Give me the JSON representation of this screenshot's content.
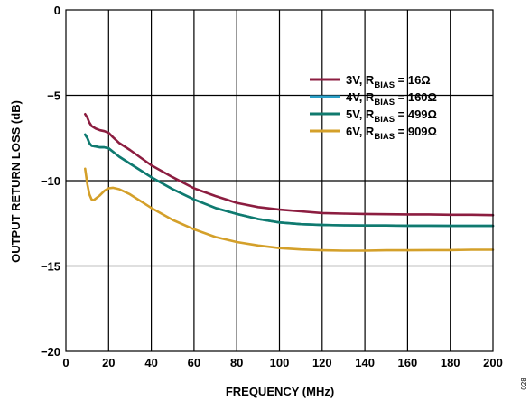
{
  "chart_data": {
    "type": "line",
    "title": "",
    "xlabel": "FREQUENCY (MHz)",
    "ylabel": "OUTPUT RETURN LOSS (dB)",
    "xlim": [
      0,
      200
    ],
    "ylim": [
      -20,
      0
    ],
    "xticks": [
      0,
      20,
      40,
      60,
      80,
      100,
      120,
      140,
      160,
      180,
      200
    ],
    "yticks": [
      0,
      -5,
      -10,
      -15,
      -20
    ],
    "x_tick_labels": [
      "0",
      "20",
      "40",
      "60",
      "80",
      "100",
      "120",
      "140",
      "160",
      "180",
      "200"
    ],
    "y_tick_labels": [
      "0",
      "−5",
      "−10",
      "−15",
      "−20"
    ],
    "grid": true,
    "legend_position": "top-right",
    "series": [
      {
        "name": "3V, RBIAS = 16Ω",
        "legend": {
          "prefix": "3V, R",
          "sub": "BIAS",
          "suffix": " = 16Ω"
        },
        "color": "#8c1d40",
        "x": [
          9,
          10,
          11,
          12,
          14,
          16,
          18,
          20,
          22,
          25,
          30,
          40,
          50,
          60,
          70,
          80,
          90,
          100,
          110,
          120,
          130,
          140,
          150,
          160,
          170,
          180,
          190,
          200
        ],
        "y": [
          -6.1,
          -6.3,
          -6.6,
          -6.8,
          -6.95,
          -7.05,
          -7.1,
          -7.2,
          -7.45,
          -7.8,
          -8.2,
          -9.1,
          -9.8,
          -10.45,
          -10.9,
          -11.3,
          -11.55,
          -11.7,
          -11.8,
          -11.9,
          -11.93,
          -11.95,
          -11.97,
          -11.98,
          -11.98,
          -12.0,
          -12.0,
          -12.02
        ]
      },
      {
        "name": "4V, RBIAS = 160Ω",
        "legend": {
          "prefix": "4V, R",
          "sub": "BIAS",
          "suffix": " = 160Ω"
        },
        "color": "#2aa0c8",
        "x": [
          9,
          10,
          11,
          12,
          14,
          16,
          18,
          20,
          22,
          25,
          30,
          40,
          50,
          60,
          70,
          80,
          90,
          100,
          110,
          120,
          130,
          140,
          150,
          160,
          170,
          180,
          190,
          200
        ],
        "y": [
          -7.3,
          -7.5,
          -7.8,
          -7.95,
          -8.0,
          -8.05,
          -8.05,
          -8.1,
          -8.3,
          -8.6,
          -9.0,
          -9.8,
          -10.5,
          -11.1,
          -11.6,
          -11.95,
          -12.25,
          -12.45,
          -12.55,
          -12.6,
          -12.62,
          -12.63,
          -12.63,
          -12.64,
          -12.64,
          -12.65,
          -12.65,
          -12.65
        ]
      },
      {
        "name": "5V, RBIAS = 499Ω",
        "legend": {
          "prefix": "5V, R",
          "sub": "BIAS",
          "suffix": " = 499Ω"
        },
        "color": "#107a6e",
        "x": [
          9,
          10,
          11,
          12,
          14,
          16,
          18,
          20,
          22,
          25,
          30,
          40,
          50,
          60,
          70,
          80,
          90,
          100,
          110,
          120,
          130,
          140,
          150,
          160,
          170,
          180,
          190,
          200
        ],
        "y": [
          -7.3,
          -7.5,
          -7.8,
          -7.95,
          -8.0,
          -8.05,
          -8.05,
          -8.1,
          -8.3,
          -8.6,
          -9.0,
          -9.8,
          -10.5,
          -11.1,
          -11.6,
          -11.95,
          -12.25,
          -12.45,
          -12.55,
          -12.6,
          -12.62,
          -12.63,
          -12.63,
          -12.64,
          -12.64,
          -12.65,
          -12.65,
          -12.65
        ]
      },
      {
        "name": "6V, RBIAS = 909Ω",
        "legend": {
          "prefix": "6V, R",
          "sub": "BIAS",
          "suffix": " = 909Ω"
        },
        "color": "#d4a02a",
        "x": [
          9,
          10,
          11,
          12,
          13,
          14,
          16,
          18,
          20,
          22,
          25,
          30,
          40,
          50,
          60,
          70,
          80,
          90,
          100,
          110,
          120,
          130,
          140,
          150,
          160,
          170,
          180,
          190,
          200
        ],
        "y": [
          -9.3,
          -10.2,
          -10.8,
          -11.1,
          -11.15,
          -11.05,
          -10.85,
          -10.6,
          -10.45,
          -10.42,
          -10.5,
          -10.8,
          -11.6,
          -12.3,
          -12.85,
          -13.3,
          -13.6,
          -13.8,
          -13.95,
          -14.03,
          -14.08,
          -14.1,
          -14.1,
          -14.08,
          -14.08,
          -14.07,
          -14.07,
          -14.05,
          -14.05
        ]
      }
    ]
  },
  "figure_id": "028"
}
